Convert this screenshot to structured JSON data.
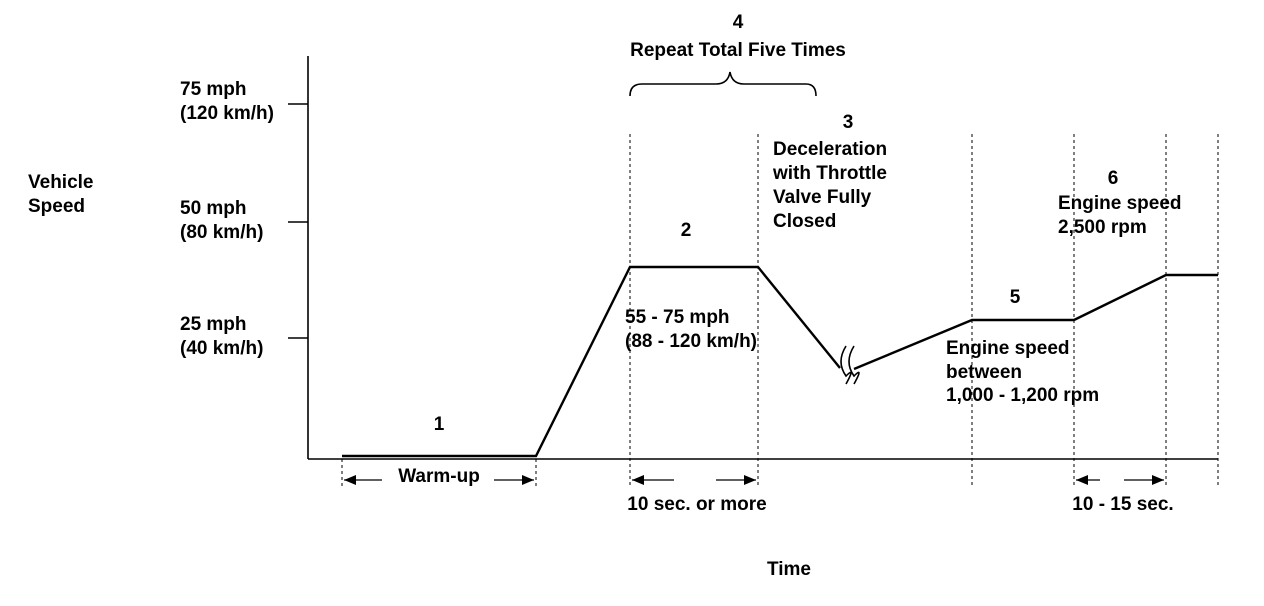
{
  "y_axis": {
    "label_line1": "Vehicle",
    "label_line2": "Speed",
    "ticks": [
      {
        "mph": "75 mph",
        "kmh": "(120 km/h)"
      },
      {
        "mph": "50 mph",
        "kmh": "(80 km/h)"
      },
      {
        "mph": "25 mph",
        "kmh": "(40 km/h)"
      }
    ]
  },
  "x_axis": {
    "label": "Time"
  },
  "phases": {
    "p1": {
      "number": "1",
      "span_label": "Warm-up"
    },
    "p2": {
      "number": "2",
      "speed_line1": "55 - 75 mph",
      "speed_line2": "(88 - 120 km/h)",
      "span_label": "10 sec. or more"
    },
    "p3": {
      "number": "3",
      "line1": "Deceleration",
      "line2": "with Throttle",
      "line3": "Valve Fully",
      "line4": "Closed"
    },
    "p4": {
      "number": "4",
      "line1": "Repeat Total Five Times"
    },
    "p5": {
      "number": "5",
      "line1": "Engine speed",
      "line2": "between",
      "line3": "1,000 - 1,200 rpm"
    },
    "p6": {
      "number": "6",
      "line1": "Engine speed",
      "line2": "2,500 rpm",
      "span_label": "10 - 15 sec."
    }
  }
}
